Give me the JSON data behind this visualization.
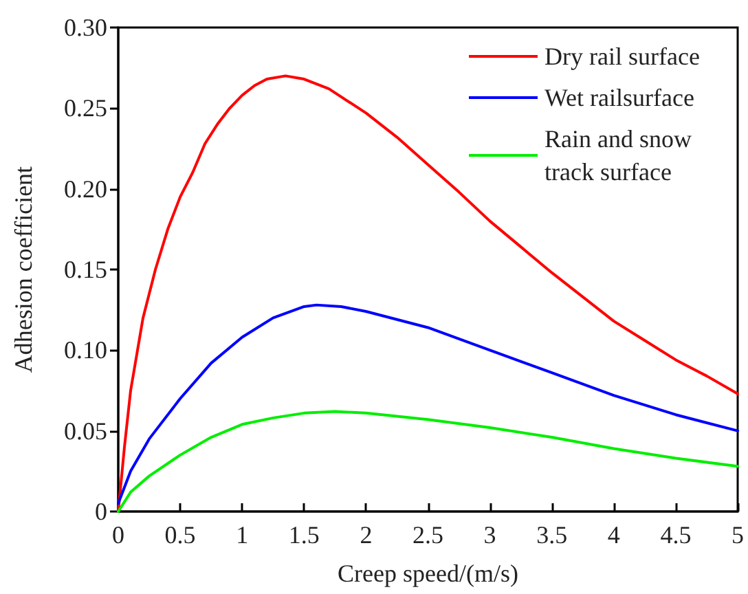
{
  "chart_data": {
    "type": "line",
    "xlabel": "Creep speed/(m/s)",
    "ylabel": "Adhesion coefficient",
    "xlim": [
      0,
      5
    ],
    "xticks": [
      0,
      0.5,
      1,
      1.5,
      2,
      2.5,
      3,
      3.5,
      4,
      4.5,
      5
    ],
    "ylim": [
      0,
      0.3
    ],
    "yticks": [
      {
        "value": 0,
        "label": "0"
      },
      {
        "value": 0.05,
        "label": "0.05"
      },
      {
        "value": 0.1,
        "label": "0.10"
      },
      {
        "value": 0.15,
        "label": "0.15"
      },
      {
        "value": 0.2,
        "label": "0.20"
      },
      {
        "value": 0.25,
        "label": "0.25"
      },
      {
        "value": 0.3,
        "label": "0.30"
      }
    ],
    "grid": false,
    "legend": "top right",
    "marker": "none",
    "line_style": "solid",
    "series": [
      {
        "name": "Dry rail surface",
        "color": "#ff0000",
        "x": [
          0,
          0.05,
          0.1,
          0.2,
          0.3,
          0.4,
          0.5,
          0.6,
          0.7,
          0.8,
          0.9,
          1.0,
          1.1,
          1.2,
          1.35,
          1.5,
          1.7,
          2,
          2.25,
          2.5,
          2.75,
          3,
          3.25,
          3.5,
          3.75,
          4,
          4.25,
          4.5,
          4.75,
          5
        ],
        "values": [
          0,
          0.04,
          0.075,
          0.12,
          0.15,
          0.175,
          0.195,
          0.21,
          0.228,
          0.24,
          0.25,
          0.258,
          0.264,
          0.268,
          0.27,
          0.268,
          0.262,
          0.247,
          0.232,
          0.215,
          0.198,
          0.18,
          0.164,
          0.148,
          0.133,
          0.118,
          0.106,
          0.094,
          0.084,
          0.073
        ]
      },
      {
        "name": "Wet railsurface",
        "color": "#0000ff",
        "x": [
          0,
          0.1,
          0.25,
          0.5,
          0.75,
          1,
          1.25,
          1.5,
          1.6,
          1.8,
          2,
          2.5,
          3,
          3.5,
          4,
          4.5,
          5
        ],
        "values": [
          0.005,
          0.025,
          0.045,
          0.07,
          0.092,
          0.108,
          0.12,
          0.127,
          0.128,
          0.127,
          0.124,
          0.114,
          0.1,
          0.086,
          0.072,
          0.06,
          0.05
        ]
      },
      {
        "name": "Rain and snow track surface",
        "color": "#00ee00",
        "x": [
          0,
          0.1,
          0.25,
          0.5,
          0.75,
          1,
          1.25,
          1.5,
          1.75,
          2,
          2.5,
          3,
          3.5,
          4,
          4.5,
          5
        ],
        "values": [
          0,
          0.012,
          0.022,
          0.035,
          0.046,
          0.054,
          0.058,
          0.061,
          0.062,
          0.061,
          0.057,
          0.052,
          0.046,
          0.039,
          0.033,
          0.028
        ]
      }
    ]
  }
}
